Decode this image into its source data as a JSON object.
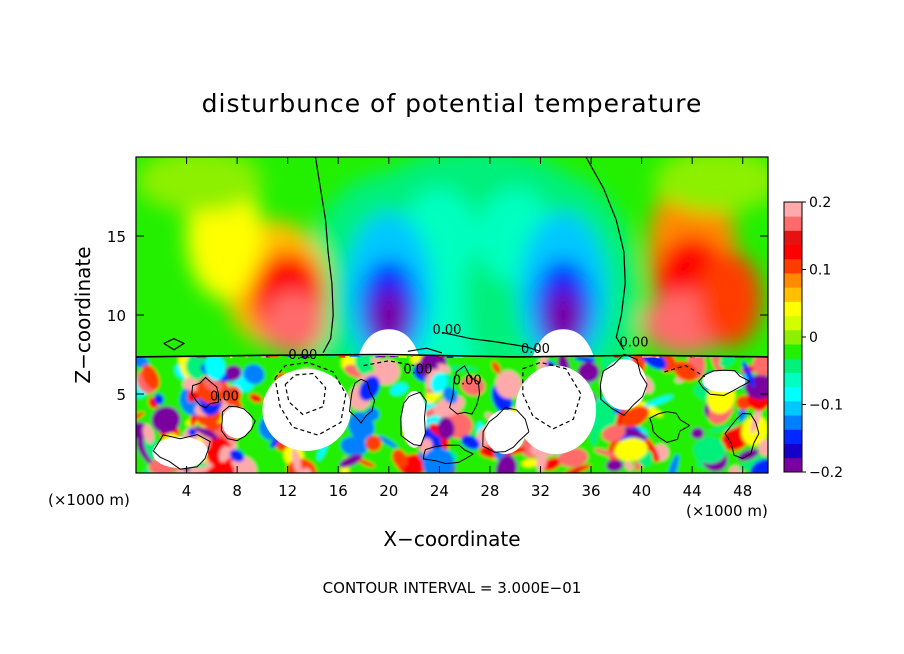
{
  "chart_data": {
    "type": "heatmap",
    "title": "disturbunce of potential temperature",
    "xlabel": "X−coordinate",
    "ylabel": "Z−coordinate",
    "x_unit": "(×1000 m)",
    "footer": "CONTOUR INTERVAL = 3.000E−01",
    "xlim": [
      0,
      50
    ],
    "ylim": [
      0,
      20
    ],
    "x_ticks": [
      4,
      8,
      12,
      16,
      20,
      24,
      28,
      32,
      36,
      40,
      44,
      48
    ],
    "y_ticks": [
      5,
      10,
      15
    ],
    "colorbar": {
      "range": [
        -0.2,
        0.2
      ],
      "tick_values": [
        0.2,
        0.1,
        0,
        -0.1,
        -0.2
      ],
      "tick_labels": [
        "0.2",
        "0.1",
        "0",
        "−0.1",
        "−0.2"
      ],
      "colors": [
        "#7a00a0",
        "#1400c8",
        "#0028ff",
        "#0080ff",
        "#00c8ff",
        "#00ffff",
        "#00ffc0",
        "#00f07c",
        "#22f000",
        "#8cf000",
        "#d2ff00",
        "#ffff00",
        "#ffc000",
        "#ff8a00",
        "#ff3c00",
        "#ff0000",
        "#e61212",
        "#ff6a6a",
        "#ffaaaa"
      ]
    },
    "contour_labels": [
      {
        "text": "0.00",
        "x": 24.6,
        "z": 8.8
      },
      {
        "text": "0.00",
        "x": 31.6,
        "z": 7.6
      },
      {
        "text": "0.00",
        "x": 39.4,
        "z": 8.0
      },
      {
        "text": "0.00",
        "x": 13.2,
        "z": 7.2
      },
      {
        "text": "0.00",
        "x": 7.0,
        "z": 4.6
      },
      {
        "text": "0.00",
        "x": 22.3,
        "z": 6.3
      },
      {
        "text": "0.00",
        "x": 26.2,
        "z": 5.6
      }
    ]
  }
}
